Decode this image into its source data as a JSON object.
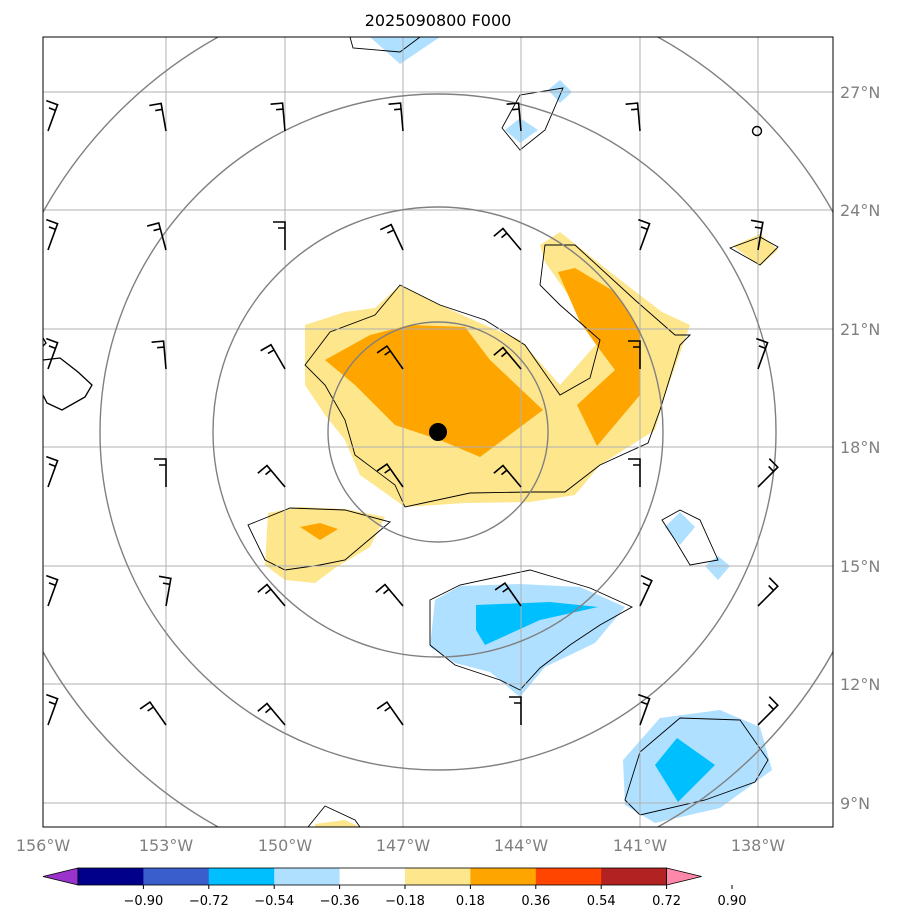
{
  "title": "2025090800 F000",
  "lon_labels": [
    "156°W",
    "153°W",
    "150°W",
    "147°W",
    "144°W",
    "141°W",
    "138°W"
  ],
  "lat_labels": [
    "9°N",
    "12°N",
    "15°N",
    "18°N",
    "21°N",
    "24°N",
    "27°N"
  ],
  "colorbar": {
    "tick_labels": [
      "−0.90",
      "−0.72",
      "−0.54",
      "−0.36",
      "−0.18",
      "0.18",
      "0.36",
      "0.54",
      "0.72",
      "0.90"
    ],
    "colors": [
      "#9933cc",
      "#00008b",
      "#3a5fcd",
      "#00bfff",
      "#b0e0ff",
      "#ffffff",
      "#fde68c",
      "#ffa500",
      "#ff4500",
      "#b22222",
      "#ff88aa"
    ]
  },
  "colors": {
    "pos_light": "#fde68c",
    "pos_mid": "#ffa500",
    "neg_light": "#b0e0ff",
    "neg_mid": "#00bfff",
    "grid": "#b0b0b0",
    "range_rings": "#808080"
  },
  "map": {
    "lon_range": [
      -156.0,
      -136.1
    ],
    "lat_range": [
      8.4,
      28.3
    ],
    "center_marker": {
      "lon": -146.0,
      "lat": 18.4
    },
    "range_rings": "concentric circles around storm center",
    "wind_barbs": true
  }
}
